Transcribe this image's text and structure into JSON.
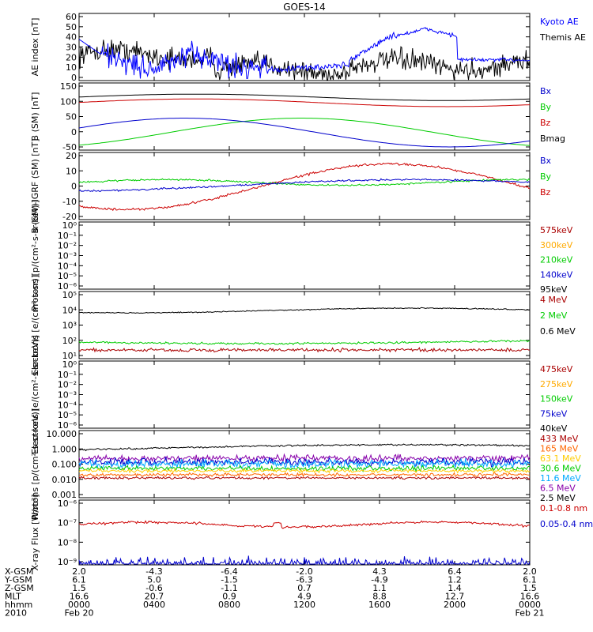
{
  "title": "GOES-14",
  "time_axis": {
    "rows": [
      {
        "label": "X-GSM",
        "values": [
          "2.0",
          "-4.3",
          "-6.4",
          "-2.0",
          "4.3",
          "6.4",
          "2.0"
        ]
      },
      {
        "label": "Y-GSM",
        "values": [
          "6.1",
          "5.0",
          "-1.5",
          "-6.3",
          "-4.9",
          "1.2",
          "6.1"
        ]
      },
      {
        "label": "Z-GSM",
        "values": [
          "1.5",
          "-0.6",
          "-1.1",
          "0.7",
          "1.1",
          "1.4",
          "1.5"
        ]
      },
      {
        "label": "MLT",
        "values": [
          "16.6",
          "20.7",
          "0.9",
          "4.9",
          "8.8",
          "12.7",
          "16.6"
        ]
      },
      {
        "label": "hhmm",
        "values": [
          "0000",
          "0400",
          "0800",
          "1200",
          "1600",
          "2000",
          "0000"
        ]
      },
      {
        "label": "2010",
        "values": [
          "Feb 20",
          "",
          "",
          "",
          "",
          "",
          "Feb 21"
        ]
      }
    ]
  },
  "chart_data": [
    {
      "type": "line",
      "ylabel": "AE index [nT]",
      "yticks": [
        "60",
        "50",
        "40",
        "30",
        "20",
        "10",
        "0"
      ],
      "ylim": [
        0,
        65
      ],
      "series": [
        {
          "name": "Kyoto AE",
          "color": "#0000ff"
        },
        {
          "name": "Themis AE",
          "color": "#000000"
        }
      ]
    },
    {
      "type": "line",
      "ylabel": "B (SM) [nT]",
      "yticks": [
        "150",
        "100",
        "50",
        "0",
        "-50"
      ],
      "ylim": [
        -60,
        150
      ],
      "series": [
        {
          "name": "Bx",
          "color": "#0000cc"
        },
        {
          "name": "By",
          "color": "#00cc00"
        },
        {
          "name": "Bz",
          "color": "#cc0000"
        },
        {
          "name": "Bmag",
          "color": "#000000"
        }
      ]
    },
    {
      "type": "line",
      "ylabel": "B (SM)-IGRF (SM) [nT]",
      "yticks": [
        "20",
        "10",
        "0",
        "-10",
        "-20"
      ],
      "ylim": [
        -25,
        22
      ],
      "series": [
        {
          "name": "Bx",
          "color": "#0000cc"
        },
        {
          "name": "By",
          "color": "#00cc00"
        },
        {
          "name": "Bz",
          "color": "#cc0000"
        }
      ]
    },
    {
      "type": "line",
      "ylabel": "Protons [p/(cm²-s-sr-keV)]",
      "yticks": [
        "10⁰",
        "10⁻¹",
        "10⁻²",
        "10⁻³",
        "10⁻⁴",
        "10⁻⁵",
        "10⁻⁶"
      ],
      "series": [
        {
          "name": "575keV",
          "color": "#aa0000"
        },
        {
          "name": "300keV",
          "color": "#ffaa00"
        },
        {
          "name": "210keV",
          "color": "#00cc00"
        },
        {
          "name": "140keV",
          "color": "#0000cc"
        },
        {
          "name": "95keV",
          "color": "#000000"
        }
      ]
    },
    {
      "type": "line",
      "ylabel": "Electrons [e/(cm²-s-sr)]",
      "yticks": [
        "10⁵",
        "10⁴",
        "10³",
        "10²",
        "10¹"
      ],
      "series": [
        {
          "name": "4 MeV",
          "color": "#aa0000"
        },
        {
          "name": "2 MeV",
          "color": "#00cc00"
        },
        {
          "name": "0.6 MeV",
          "color": "#000000"
        }
      ]
    },
    {
      "type": "line",
      "ylabel": "Electrons [e/(cm²-s-sr-keV)]",
      "yticks": [
        "10⁰",
        "10⁻¹",
        "10⁻²",
        "10⁻³",
        "10⁻⁴",
        "10⁻⁵",
        "10⁻⁶"
      ],
      "series": [
        {
          "name": "475keV",
          "color": "#aa0000"
        },
        {
          "name": "275keV",
          "color": "#ffaa00"
        },
        {
          "name": "150keV",
          "color": "#00cc00"
        },
        {
          "name": "75keV",
          "color": "#0000cc"
        },
        {
          "name": "40keV",
          "color": "#000000"
        }
      ]
    },
    {
      "type": "line",
      "ylabel": "Protons [p/(cm²-s-sr-keV)]",
      "yticks": [
        "10.000",
        "1.000",
        "0.100",
        "0.010",
        "0.001"
      ],
      "series": [
        {
          "name": "433 MeV",
          "color": "#aa0000"
        },
        {
          "name": "165 MeV",
          "color": "#ff6600"
        },
        {
          "name": "63.1 MeV",
          "color": "#ffcc00"
        },
        {
          "name": "30.6 MeV",
          "color": "#00cc00"
        },
        {
          "name": "11.6 MeV",
          "color": "#00aaff"
        },
        {
          "name": "6.5 MeV",
          "color": "#8800aa"
        },
        {
          "name": "2.5 MeV",
          "color": "#000000"
        }
      ]
    },
    {
      "type": "line",
      "ylabel": "X-ray Flux [W/m²]",
      "yticks": [
        "10⁻⁶",
        "10⁻⁷",
        "10⁻⁸",
        "10⁻⁹"
      ],
      "series": [
        {
          "name": "0.1-0.8 nm",
          "color": "#cc0000"
        },
        {
          "name": "0.05-0.4 nm",
          "color": "#0000cc"
        }
      ]
    }
  ]
}
